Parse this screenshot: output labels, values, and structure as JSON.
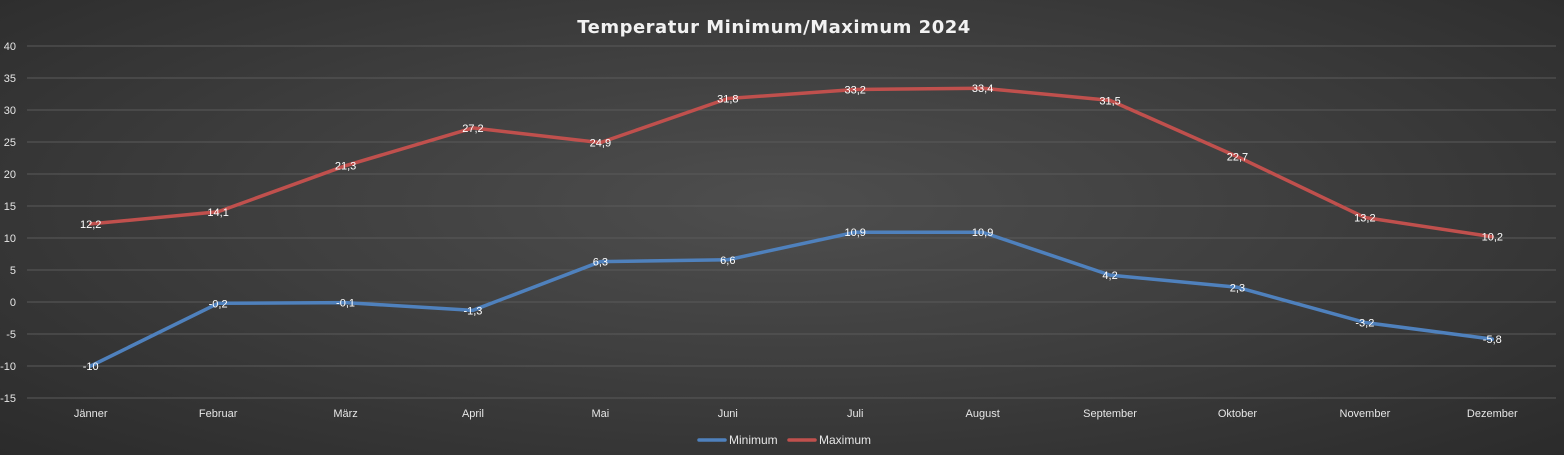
{
  "chart_data": {
    "type": "line",
    "title": "Temperatur Minimum/Maximum 2024",
    "categories": [
      "Jänner",
      "Februar",
      "März",
      "April",
      "Mai",
      "Juni",
      "Juli",
      "August",
      "September",
      "Oktober",
      "November",
      "Dezember"
    ],
    "series": [
      {
        "name": "Minimum",
        "color": "#4f81bd",
        "values": [
          -10,
          -0.2,
          -0.1,
          -1.3,
          6.3,
          6.6,
          10.9,
          10.9,
          4.2,
          2.3,
          -3.2,
          -5.8
        ],
        "labels": [
          "-10",
          "-0,2",
          "-0,1",
          "-1,3",
          "6,3",
          "6,6",
          "10,9",
          "10,9",
          "4,2",
          "2,3",
          "-3,2",
          "-5,8"
        ]
      },
      {
        "name": "Maximum",
        "color": "#c0504d",
        "values": [
          12.2,
          14.1,
          21.3,
          27.2,
          24.9,
          31.8,
          33.2,
          33.4,
          31.5,
          22.7,
          13.2,
          10.2
        ],
        "labels": [
          "12,2",
          "14,1",
          "21,3",
          "27,2",
          "24,9",
          "31,8",
          "33,2",
          "33,4",
          "31,5",
          "22,7",
          "13,2",
          "10,2"
        ]
      }
    ],
    "ylim": [
      -15,
      40
    ],
    "yticks": [
      40,
      35,
      30,
      25,
      20,
      15,
      10,
      5,
      0,
      -5,
      -10,
      -15
    ],
    "grid": true,
    "legend": "bottom"
  }
}
